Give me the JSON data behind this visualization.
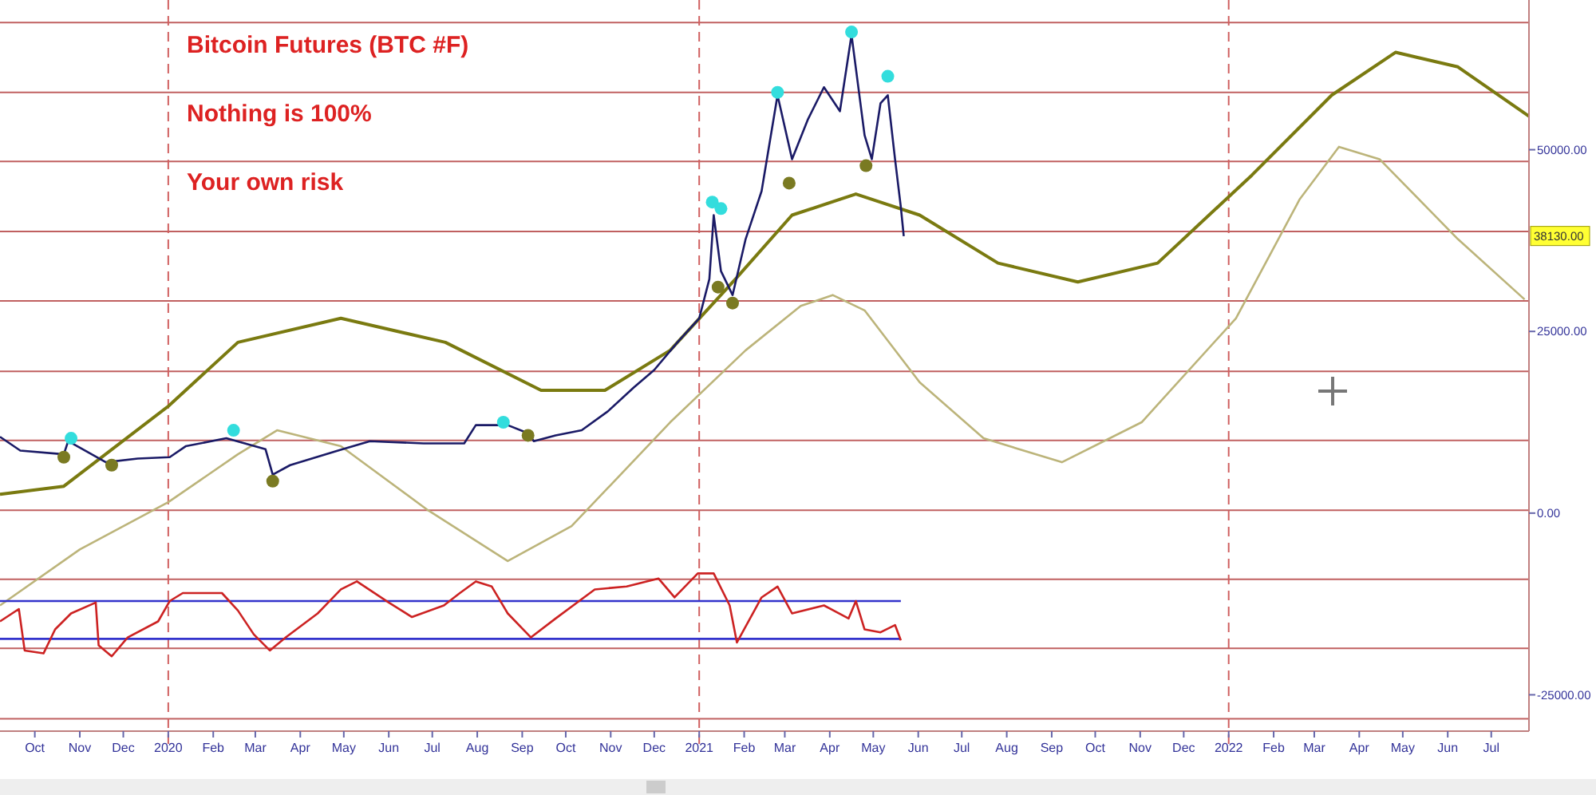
{
  "chart_data": {
    "type": "line",
    "title": "Bitcoin Futures (BTC #F)",
    "annotations": [
      "Nothing is 100%",
      "Your own risk",
      {
        "text": "38130.00",
        "y": 38130
      }
    ],
    "xlim": [
      "2019-09-07",
      "2022-07-27"
    ],
    "xticks": [
      {
        "value": "2019-10-01",
        "label": "Oct"
      },
      {
        "value": "2019-11-01",
        "label": "Nov"
      },
      {
        "value": "2019-12-01",
        "label": "Dec"
      },
      {
        "value": "2020-01-01",
        "label": "2020"
      },
      {
        "value": "2020-02-01",
        "label": "Feb"
      },
      {
        "value": "2020-03-01",
        "label": "Mar"
      },
      {
        "value": "2020-04-01",
        "label": "Apr"
      },
      {
        "value": "2020-05-01",
        "label": "May"
      },
      {
        "value": "2020-06-01",
        "label": "Jun"
      },
      {
        "value": "2020-07-01",
        "label": "Jul"
      },
      {
        "value": "2020-08-01",
        "label": "Aug"
      },
      {
        "value": "2020-09-01",
        "label": "Sep"
      },
      {
        "value": "2020-10-01",
        "label": "Oct"
      },
      {
        "value": "2020-11-01",
        "label": "Nov"
      },
      {
        "value": "2020-12-01",
        "label": "Dec"
      },
      {
        "value": "2021-01-01",
        "label": "2021"
      },
      {
        "value": "2021-02-01",
        "label": "Feb"
      },
      {
        "value": "2021-03-01",
        "label": "Mar"
      },
      {
        "value": "2021-04-01",
        "label": "Apr"
      },
      {
        "value": "2021-05-01",
        "label": "May"
      },
      {
        "value": "2021-06-01",
        "label": "Jun"
      },
      {
        "value": "2021-07-01",
        "label": "Jul"
      },
      {
        "value": "2021-08-01",
        "label": "Aug"
      },
      {
        "value": "2021-09-01",
        "label": "Sep"
      },
      {
        "value": "2021-10-01",
        "label": "Oct"
      },
      {
        "value": "2021-11-01",
        "label": "Nov"
      },
      {
        "value": "2021-12-01",
        "label": "Dec"
      },
      {
        "value": "2022-01-01",
        "label": "2022"
      },
      {
        "value": "2022-02-01",
        "label": "Feb"
      },
      {
        "value": "2022-03-01",
        "label": "Mar"
      },
      {
        "value": "2022-04-01",
        "label": "Apr"
      },
      {
        "value": "2022-05-01",
        "label": "May"
      },
      {
        "value": "2022-06-01",
        "label": "Jun"
      },
      {
        "value": "2022-07-01",
        "label": "Jul"
      }
    ],
    "ylim": [
      -30000,
      70600
    ],
    "yticks": [
      {
        "value": 50000,
        "label": "50000.00"
      },
      {
        "value": 25000,
        "label": "25000.00"
      },
      {
        "value": 0,
        "label": "0.00"
      },
      {
        "value": -25000,
        "label": "-25000.00"
      }
    ],
    "grid": false,
    "ref_lines": [
      {
        "axis": "y",
        "value": 67500,
        "color": "#c06060"
      },
      {
        "axis": "y",
        "value": 57900,
        "color": "#c06060"
      },
      {
        "axis": "y",
        "value": 48400,
        "color": "#c06060"
      },
      {
        "axis": "y",
        "value": 38750,
        "color": "#c06060"
      },
      {
        "axis": "y",
        "value": 29200,
        "color": "#c06060"
      },
      {
        "axis": "y",
        "value": 19500,
        "color": "#c06060"
      },
      {
        "axis": "y",
        "value": 10000,
        "color": "#c06060"
      },
      {
        "axis": "y",
        "value": 400,
        "color": "#c06060"
      },
      {
        "axis": "y",
        "value": -9100,
        "color": "#c06060"
      },
      {
        "axis": "y",
        "value": -18600,
        "color": "#c06060"
      },
      {
        "axis": "y",
        "value": -28300,
        "color": "#c06060"
      },
      {
        "axis": "x",
        "value": "2020-01-01",
        "color": "#d06060",
        "line_style": "dashed"
      },
      {
        "axis": "x",
        "value": "2021-01-01",
        "color": "#d06060",
        "line_style": "dashed"
      },
      {
        "axis": "x",
        "value": "2022-01-01",
        "color": "#d06060",
        "line_style": "dashed"
      }
    ],
    "series": [
      {
        "color": "#7a7a10",
        "x": [
          "2019-09-07",
          "2019-10-21",
          "2020-01-01",
          "2020-02-18",
          "2020-04-29",
          "2020-07-10",
          "2020-09-14",
          "2020-10-28",
          "2020-12-12",
          "2021-01-26",
          "2021-03-06",
          "2021-04-19",
          "2021-06-02",
          "2021-07-26",
          "2021-09-19",
          "2021-11-13",
          "2022-01-17",
          "2022-03-13",
          "2022-04-26",
          "2022-06-08",
          "2022-07-27"
        ],
        "values": [
          2600,
          3700,
          14700,
          23500,
          26800,
          23500,
          16900,
          16900,
          22400,
          32200,
          41000,
          43900,
          41000,
          34400,
          31800,
          34400,
          46500,
          57500,
          63400,
          61400,
          54600
        ]
      },
      {
        "color": "#bcb47a",
        "x": [
          "2019-09-07",
          "2019-11-01",
          "2020-01-01",
          "2020-02-18",
          "2020-03-16",
          "2020-04-29",
          "2020-06-28",
          "2020-08-22",
          "2020-10-05",
          "2020-12-12",
          "2021-02-02",
          "2021-03-12",
          "2021-04-03",
          "2021-04-25",
          "2021-06-02",
          "2021-07-16",
          "2021-09-08",
          "2021-11-02",
          "2022-01-06",
          "2022-02-19",
          "2022-03-18",
          "2022-04-15",
          "2022-06-08",
          "2022-07-24"
        ],
        "values": [
          -12700,
          -5000,
          1500,
          8100,
          11400,
          9200,
          400,
          -6600,
          -1800,
          12500,
          22400,
          28500,
          30000,
          27900,
          18000,
          10300,
          7000,
          12500,
          26800,
          43200,
          50400,
          48700,
          37700,
          29400
        ]
      },
      {
        "type": "line",
        "color": "#3333cc",
        "x": [
          "2019-09-07",
          "2021-05-20"
        ],
        "values": [
          -12100,
          -12100
        ]
      },
      {
        "type": "line",
        "color": "#3333cc",
        "x": [
          "2019-09-07",
          "2021-05-20"
        ],
        "values": [
          -17300,
          -17300
        ]
      },
      {
        "color": "#cc2222",
        "x": [
          "2019-09-07",
          "2019-09-20",
          "2019-09-24",
          "2019-10-07",
          "2019-10-15",
          "2019-10-26",
          "2019-11-12",
          "2019-11-14",
          "2019-11-23",
          "2019-12-04",
          "2019-12-25",
          "2020-01-02",
          "2020-01-11",
          "2020-02-07",
          "2020-02-18",
          "2020-02-29",
          "2020-03-11",
          "2020-03-22",
          "2020-04-13",
          "2020-04-29",
          "2020-05-10",
          "2020-06-01",
          "2020-06-17",
          "2020-07-09",
          "2020-07-20",
          "2020-07-31",
          "2020-08-11",
          "2020-08-22",
          "2020-09-07",
          "2020-09-24",
          "2020-10-21",
          "2020-11-12",
          "2020-12-04",
          "2020-12-15",
          "2020-12-31",
          "2021-01-11",
          "2021-01-22",
          "2021-01-27",
          "2021-02-13",
          "2021-02-24",
          "2021-03-06",
          "2021-03-28",
          "2021-04-14",
          "2021-04-19",
          "2021-04-25",
          "2021-05-06",
          "2021-05-16",
          "2021-05-20"
        ],
        "values": [
          -14900,
          -13200,
          -18900,
          -19300,
          -16000,
          -13800,
          -12300,
          -18200,
          -19700,
          -17100,
          -14900,
          -12100,
          -11000,
          -11000,
          -13400,
          -16700,
          -18900,
          -17100,
          -13800,
          -10500,
          -9400,
          -12300,
          -14300,
          -12700,
          -11000,
          -9400,
          -10100,
          -13800,
          -17100,
          -14500,
          -10500,
          -10100,
          -9000,
          -11600,
          -8300,
          -8300,
          -12700,
          -17800,
          -11600,
          -10100,
          -13800,
          -12700,
          -14500,
          -12100,
          -16000,
          -16400,
          -15400,
          -17500
        ]
      },
      {
        "color": "#1a1a66",
        "x": [
          "2019-09-07",
          "2019-09-21",
          "2019-10-21",
          "2019-10-24",
          "2019-11-19",
          "2019-12-11",
          "2020-01-02",
          "2020-01-13",
          "2020-02-10",
          "2020-03-08",
          "2020-03-13",
          "2020-03-25",
          "2020-04-27",
          "2020-05-19",
          "2020-06-25",
          "2020-07-23",
          "2020-07-31",
          "2020-08-22",
          "2020-09-05",
          "2020-09-09",
          "2020-09-24",
          "2020-10-12",
          "2020-10-30",
          "2020-11-17",
          "2020-12-01",
          "2020-12-17",
          "2021-01-01",
          "2021-01-08",
          "2021-01-11",
          "2021-01-16",
          "2021-01-24",
          "2021-02-02",
          "2021-02-13",
          "2021-02-24",
          "2021-03-06",
          "2021-03-17",
          "2021-03-28",
          "2021-04-08",
          "2021-04-16",
          "2021-04-25",
          "2021-04-30",
          "2021-05-06",
          "2021-05-11",
          "2021-05-16",
          "2021-05-20",
          "2021-05-22"
        ],
        "values": [
          10500,
          8600,
          8100,
          9900,
          7000,
          7500,
          7700,
          9200,
          10300,
          8800,
          5300,
          6600,
          8600,
          9900,
          9600,
          9600,
          12100,
          12100,
          11000,
          9900,
          10700,
          11400,
          14000,
          17300,
          19700,
          23500,
          26800,
          32200,
          41000,
          33300,
          30000,
          37700,
          44300,
          57500,
          48700,
          54200,
          58600,
          55300,
          65800,
          52000,
          48700,
          56400,
          57500,
          48700,
          42100,
          38100
        ]
      },
      {
        "type": "scatter",
        "marker": "circle",
        "color": "#33dddd",
        "x": [
          "2019-10-26",
          "2020-02-15",
          "2020-08-19",
          "2021-01-10",
          "2021-01-16",
          "2021-02-24",
          "2021-04-16",
          "2021-05-11"
        ],
        "values": [
          10300,
          11400,
          12500,
          42800,
          41900,
          57900,
          66200,
          60100
        ]
      },
      {
        "type": "scatter",
        "marker": "circle",
        "color": "#7a7a22",
        "x": [
          "2019-10-21",
          "2019-11-23",
          "2020-03-13",
          "2020-09-05",
          "2021-01-14",
          "2021-01-24",
          "2021-03-04",
          "2021-04-26"
        ],
        "values": [
          7700,
          6600,
          4400,
          10700,
          31100,
          28900,
          45400,
          47800
        ]
      }
    ]
  }
}
